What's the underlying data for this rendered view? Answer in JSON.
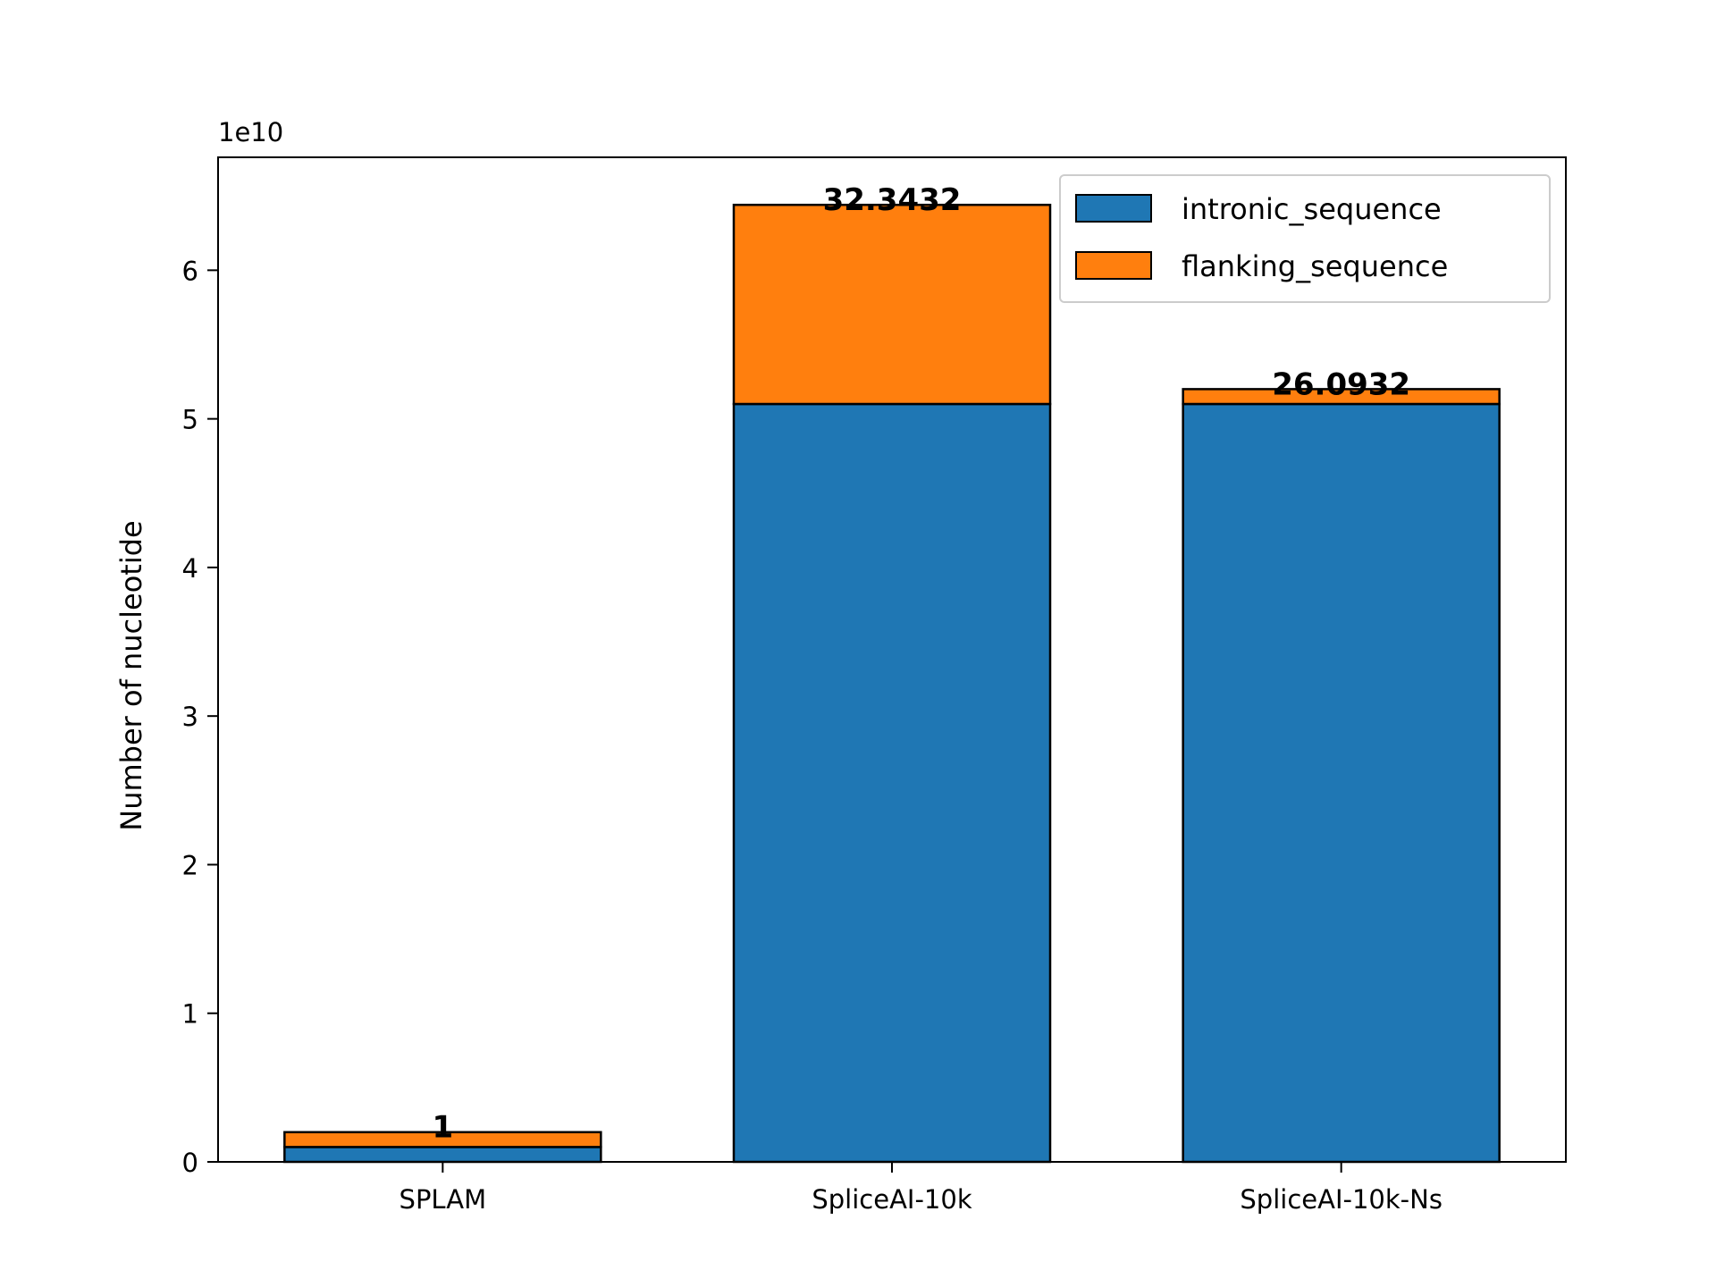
{
  "chart_data": {
    "type": "bar",
    "stacked": true,
    "categories": [
      "SPLAM",
      "SpliceAI-10k",
      "SpliceAI-10k-Ns"
    ],
    "series": [
      {
        "name": "intronic_sequence",
        "values": [
          1000000000.0,
          51000000000.0,
          51000000000.0
        ],
        "color": "#1f77b4"
      },
      {
        "name": "flanking_sequence",
        "values": [
          1000000000.0,
          13400000000.0,
          1000000000.0
        ],
        "color": "#ff7f0e"
      }
    ],
    "data_labels": [
      "1",
      "32.3432",
      "26.0932"
    ],
    "title": "",
    "xlabel": "",
    "ylabel": "Number of nucleotide",
    "ylim": [
      0,
      67600000000.0
    ],
    "yticks": [
      0,
      1,
      2,
      3,
      4,
      5,
      6
    ],
    "y_scale_label": "1e10",
    "grid": false,
    "legend_position": "top-right"
  }
}
